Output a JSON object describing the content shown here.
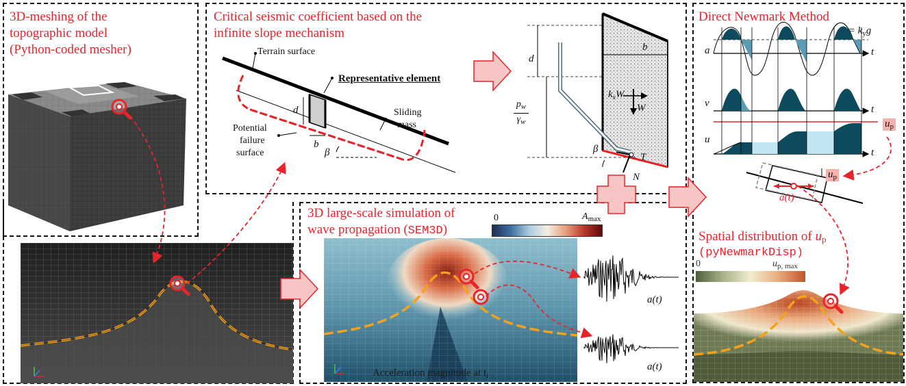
{
  "panel_mesh": {
    "title_lines": [
      "3D-meshing of the",
      "topographic model",
      "(Python-coded  mesher)"
    ]
  },
  "panel_seismic": {
    "title_lines": [
      "Critical seismic coefficient  based on the",
      "infinite slope mechanism"
    ],
    "terrain_surface": "Terrain surface",
    "representative_element": "Representative element",
    "sliding_mass_lines": [
      "Sliding",
      "mass"
    ],
    "potential_failure_lines": [
      "Potential",
      "failure",
      "surface"
    ],
    "d": "d",
    "b": "b",
    "beta": "β",
    "element_diagram": {
      "d": "d",
      "b": "b",
      "pw": "p",
      "pw_sub": "w",
      "gw": "γ",
      "gw_sub": "w",
      "ksW_k": "k",
      "ksW_sub": "s",
      "ksW_W": "W",
      "W": "W",
      "beta": "β",
      "T": "T",
      "N": "N"
    }
  },
  "panel_wave": {
    "title_line1": "3D large-scale simulation of",
    "title_line2_prefix": "wave propagation (",
    "title_line2_code": "SEM3D",
    "title_line2_suffix": ")",
    "colorbar_min": "0",
    "colorbar_max_A": "A",
    "colorbar_max_sub": "max",
    "caption": "Acceleration magnitude at t",
    "caption_sub": "i",
    "signal_label_top": "a(t)",
    "signal_label_bottom": "a(t)"
  },
  "panel_newmark": {
    "title": "Direct Newmark Method",
    "ay_eq_a": "a",
    "ay_eq_sub": "y",
    "ay_eq_rest": " = k",
    "ay_eq_sub2": "y",
    "ay_eq_g": "g",
    "axis_a": "a",
    "axis_v": "v",
    "axis_u": "u",
    "axis_t": "t",
    "up_label": "u",
    "up_sub": "p",
    "block_at": "a(t)",
    "block_up": "u",
    "block_up_sub": "p"
  },
  "panel_spatial": {
    "title_prefix": "Spatial distribution of ",
    "title_u": "u",
    "title_sub": "p",
    "code": "(pyNewmarkDisp)",
    "colorbar_min": "0",
    "colorbar_max_u": "u",
    "colorbar_max_sub": "p, max"
  },
  "colors": {
    "accent_red": "#e8242b",
    "arrow_fill": "#f7c6c4",
    "arrow_stroke": "#e8242b",
    "dark_teal": "#0d4a5e",
    "mid_teal": "#5b9bb5",
    "light_cyan": "#bfe6f2"
  }
}
